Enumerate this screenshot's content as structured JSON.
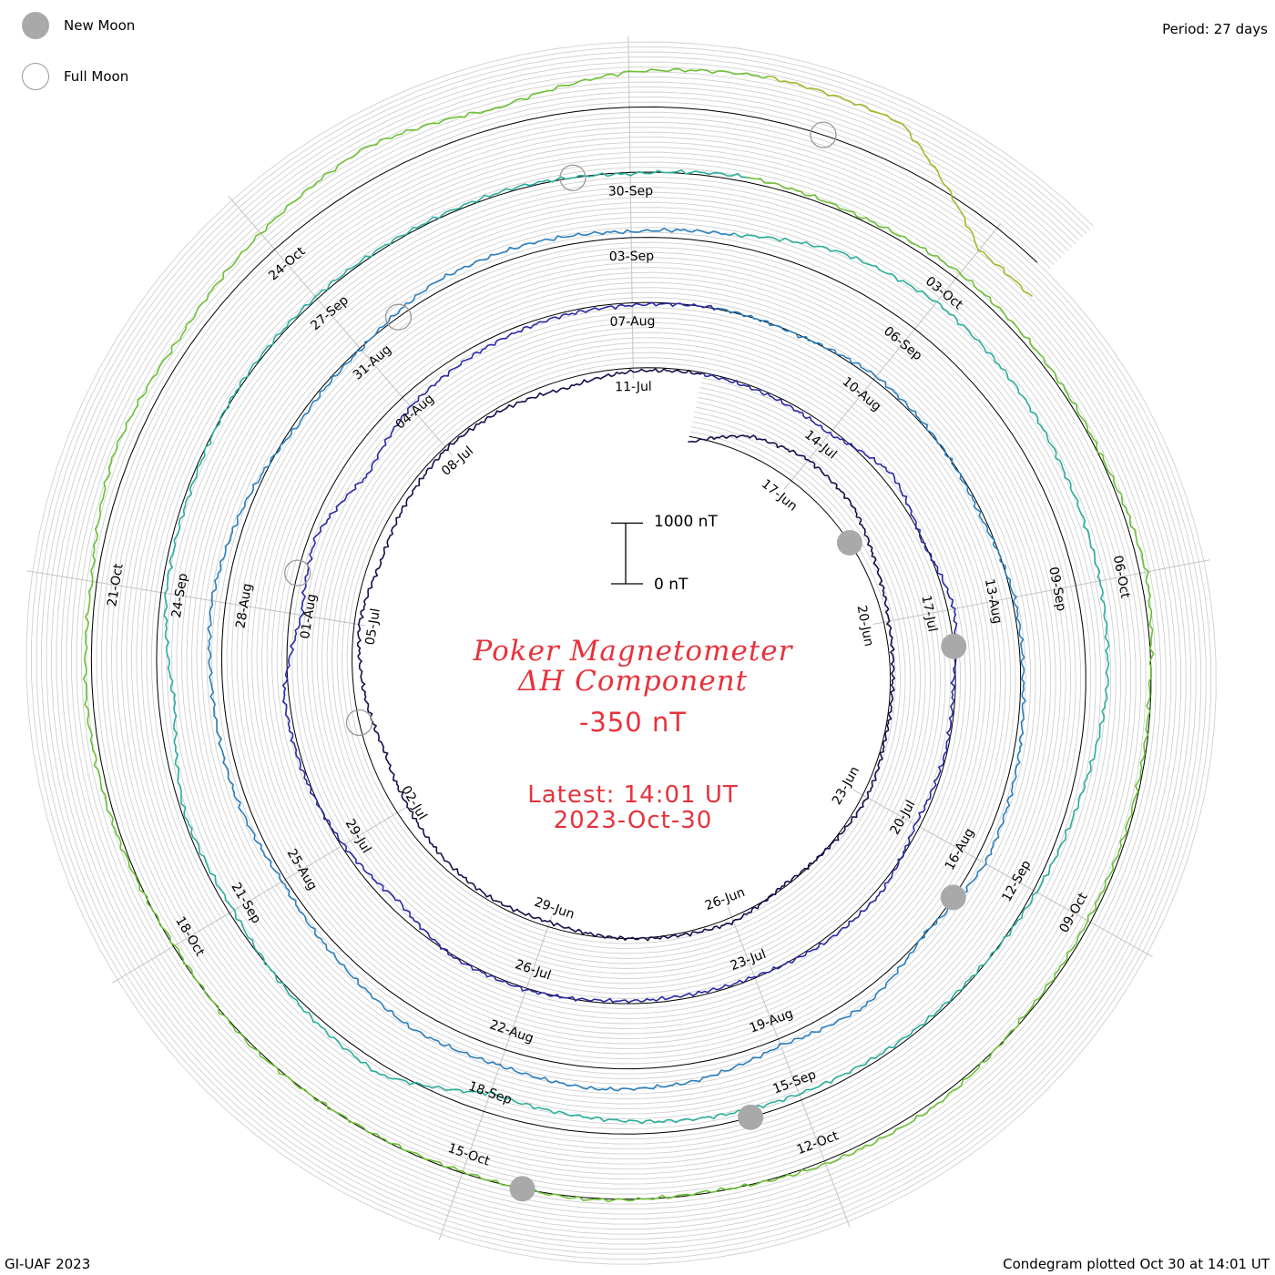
{
  "header": {
    "period_label": "Period: 27 days",
    "credit": "GI-UAF 2023",
    "plotted": "Condegram plotted Oct 30 at 14:01 UT"
  },
  "legend": {
    "new_moon": "New Moon",
    "full_moon": "Full Moon",
    "new_moon_color": "#a9a9a9",
    "full_moon_color": "#999999"
  },
  "center": {
    "title_line1": "Poker Magnetometer",
    "title_line2": "ΔH Component",
    "current_value": "-350 nT",
    "latest_label": "Latest: 14:01 UT",
    "latest_date": "2023-Oct-30",
    "text_color": "#e8323c"
  },
  "scale_bar": {
    "top_label": "1000 nT",
    "bottom_label": "0 nT",
    "top_value": 1000,
    "bottom_value": 0
  },
  "chart_data": {
    "type": "line",
    "layout": "spiral condegram (27-day period)",
    "x_unit": "days",
    "y_unit": "nT",
    "period_days": 27,
    "start_date": "2023-06-15",
    "end_date": "2023-10-30",
    "grid": true,
    "date_ticks": [
      "17-Jun",
      "20-Jun",
      "23-Jun",
      "26-Jun",
      "29-Jun",
      "02-Jul",
      "05-Jul",
      "08-Jul",
      "11-Jul",
      "14-Jul",
      "17-Jul",
      "20-Jul",
      "23-Jul",
      "26-Jul",
      "29-Jul",
      "01-Aug",
      "04-Aug",
      "07-Aug",
      "10-Aug",
      "13-Aug",
      "16-Aug",
      "19-Aug",
      "22-Aug",
      "25-Aug",
      "28-Aug",
      "31-Aug",
      "03-Sep",
      "06-Sep",
      "09-Sep",
      "12-Sep",
      "15-Sep",
      "18-Sep",
      "21-Sep",
      "24-Sep",
      "27-Sep",
      "30-Sep",
      "03-Oct",
      "06-Oct",
      "09-Oct",
      "12-Oct",
      "15-Oct",
      "18-Oct",
      "21-Oct",
      "24-Oct"
    ],
    "turn_colors": [
      "#15104a",
      "#2a2aa6",
      "#2a7fbe",
      "#2aae9c",
      "#6cc034",
      "#a4b82a",
      "#c0961c",
      "#c8501a",
      "#b81414"
    ],
    "new_moon_dates": [
      "2023-06-18",
      "2023-07-17",
      "2023-08-16",
      "2023-09-15",
      "2023-10-14"
    ],
    "full_moon_dates": [
      "2023-07-03",
      "2023-08-01",
      "2023-08-31",
      "2023-09-29",
      "2023-10-28"
    ],
    "series": [
      {
        "x": [
          0.0,
          1.0,
          2.0,
          3.0,
          4.0,
          5.0,
          6.0,
          7.0,
          8.0,
          9.0,
          10.0,
          11.0,
          12.0,
          13.0,
          14.0,
          15.0,
          16.0,
          17.0,
          18.0,
          19.0,
          20.0,
          21.0,
          22.0,
          23.0,
          24.0,
          25.0,
          26.0,
          27.0,
          28.0,
          29.0,
          30.0,
          31.0,
          32.0,
          33.0,
          34.0,
          35.0,
          36.0,
          37.0,
          38.0,
          39.0,
          40.0,
          41.0,
          42.0,
          43.0,
          44.0,
          45.0,
          46.0,
          47.0,
          48.0,
          49.0,
          50.0,
          51.0,
          52.0,
          53.0,
          54.0,
          55.0,
          56.0,
          57.0,
          58.0,
          59.0,
          60.0,
          61.0,
          62.0,
          63.0,
          64.0,
          65.0,
          66.0,
          67.0,
          68.0,
          69.0,
          70.0,
          71.0,
          72.0,
          73.0,
          74.0,
          75.0,
          76.0,
          77.0,
          78.0,
          79.0,
          80.0,
          81.0,
          82.0,
          83.0,
          84.0,
          85.0,
          86.0,
          87.0,
          88.0,
          89.0,
          90.0,
          91.0,
          92.0,
          93.0,
          94.0,
          95.0,
          96.0,
          97.0,
          98.0,
          99.0,
          100.0,
          101.0,
          102.0,
          103.0,
          104.0,
          105.0,
          106.0,
          107.0,
          108.0,
          109.0,
          110.0,
          111.0,
          112.0,
          113.0,
          114.0,
          115.0,
          116.0,
          117.0,
          118.0,
          119.0,
          120.0,
          121.0,
          122.0,
          123.0,
          124.0,
          125.0,
          126.0,
          127.0,
          128.0,
          129.0,
          130.0,
          131.0,
          132.0,
          133.0,
          134.0,
          135.0,
          136.0,
          137.0
        ],
        "y": [
          -80,
          220,
          330,
          300,
          150,
          60,
          30,
          20,
          60,
          10,
          -30,
          60,
          20,
          -10,
          -60,
          -40,
          -80,
          -150,
          -200,
          -120,
          -60,
          -140,
          -80,
          -30,
          -50,
          -110,
          -40,
          -20,
          -30,
          -60,
          120,
          -20,
          80,
          -30,
          -20,
          -60,
          60,
          40,
          -20,
          -40,
          -30,
          20,
          20,
          -120,
          -30,
          30,
          60,
          -150,
          -80,
          -300,
          -150,
          -90,
          -40,
          -30,
          10,
          -10,
          50,
          10,
          -40,
          30,
          30,
          80,
          120,
          -10,
          160,
          80,
          220,
          260,
          200,
          230,
          120,
          40,
          110,
          130,
          170,
          80,
          -50,
          -20,
          120,
          120,
          70,
          130,
          330,
          420,
          380,
          320,
          300,
          260,
          120,
          40,
          -20,
          -40,
          -80,
          -120,
          -180,
          -240,
          120,
          40,
          -60,
          -30,
          -200,
          -60,
          -40,
          20,
          30,
          20,
          30,
          -20,
          60,
          30,
          80,
          50,
          20,
          80,
          -20,
          -30,
          -40,
          -20,
          60,
          40,
          -20,
          20,
          -20,
          -10,
          20,
          -20,
          40,
          80,
          60,
          200,
          150,
          260,
          380,
          220,
          430,
          510,
          480,
          -350
        ]
      }
    ]
  }
}
